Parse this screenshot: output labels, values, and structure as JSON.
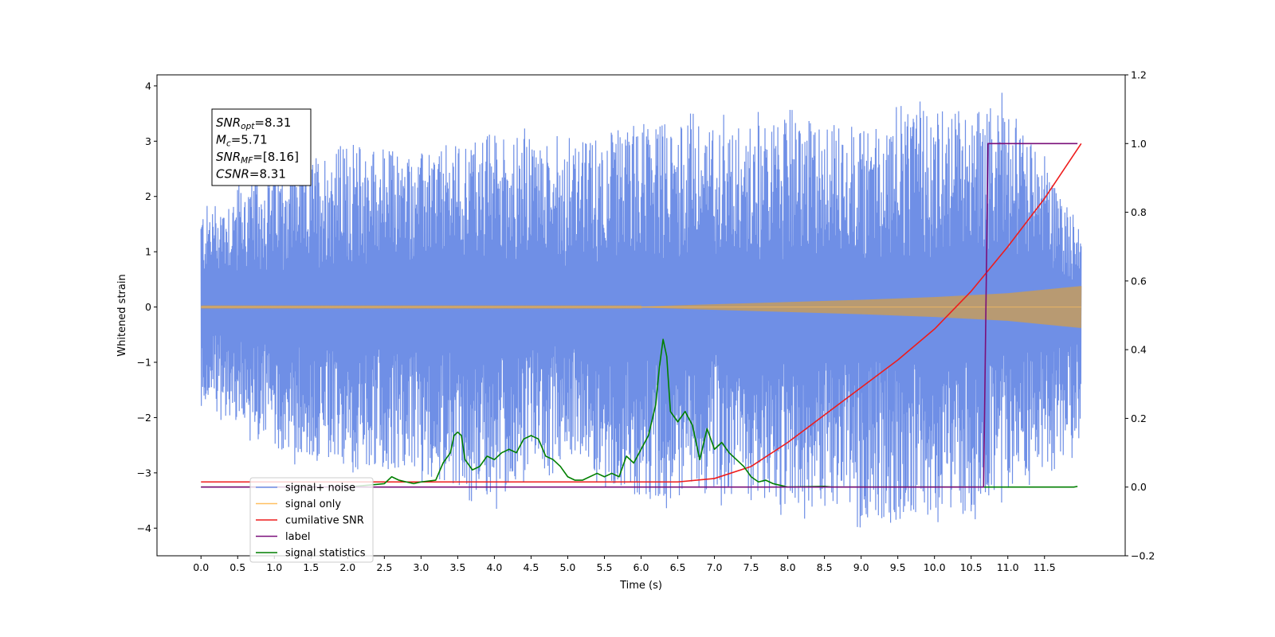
{
  "chart_data": {
    "type": "line",
    "xlabel": "Time (s)",
    "ylabel": "Whitened strain",
    "xlim": [
      -0.6,
      12.6
    ],
    "ylim": [
      -4.5,
      4.2
    ],
    "y2lim": [
      -0.2,
      1.2
    ],
    "x_ticks": [
      0.0,
      0.5,
      1.0,
      1.5,
      2.0,
      2.5,
      3.0,
      3.5,
      4.0,
      4.5,
      5.0,
      5.5,
      6.0,
      6.5,
      7.0,
      7.5,
      8.0,
      8.5,
      9.0,
      9.5,
      10.0,
      10.5,
      11.0,
      11.5
    ],
    "x_tick_labels": [
      "0.0",
      "0.5",
      "1.0",
      "1.5",
      "2.0",
      "2.5",
      "3.0",
      "3.5",
      "4.0",
      "4.5",
      "5.0",
      "5.5",
      "6.0",
      "6.5",
      "7.0",
      "7.5",
      "8.0",
      "8.5",
      "9.0",
      "9.5",
      "10.0",
      "10.5",
      "11.0",
      "11.5"
    ],
    "y_ticks": [
      -4,
      -3,
      -2,
      -1,
      0,
      1,
      2,
      3,
      4
    ],
    "y_tick_labels": [
      "−4",
      "−3",
      "−2",
      "−1",
      "0",
      "1",
      "2",
      "3",
      "4"
    ],
    "y2_ticks": [
      -0.2,
      0.0,
      0.2,
      0.4,
      0.6,
      0.8,
      1.0,
      1.2
    ],
    "y2_tick_labels": [
      "−0.2",
      "0.0",
      "0.2",
      "0.4",
      "0.6",
      "0.8",
      "1.0",
      "1.2"
    ],
    "grid": false,
    "legend_position": "lower-left",
    "stats_box": [
      {
        "base": "SNR",
        "sub": "opt",
        "value": "=8.31"
      },
      {
        "base": "M",
        "sub": "c",
        "value": "=5.71"
      },
      {
        "base": "SNR",
        "sub": "MF",
        "value": "=[8.16]"
      },
      {
        "base": "CSNR",
        "sub": "",
        "value": "=8.31"
      }
    ],
    "series": [
      {
        "name": "signal+ noise",
        "axis": "left",
        "color": "#6f8fe6",
        "envelope_x": [
          0.0,
          1.0,
          2.0,
          3.0,
          4.0,
          5.0,
          6.0,
          7.0,
          8.0,
          9.0,
          10.0,
          11.0,
          12.0
        ],
        "envelope_upper": [
          1.8,
          2.5,
          3.0,
          2.8,
          3.2,
          2.9,
          3.4,
          3.3,
          3.4,
          3.3,
          3.6,
          3.7,
          1.5
        ],
        "envelope_lower": [
          -1.7,
          -2.6,
          -3.0,
          -3.0,
          -3.5,
          -2.7,
          -3.5,
          -3.4,
          -3.6,
          -3.8,
          -4.1,
          -3.3,
          -2.5
        ]
      },
      {
        "name": "signal only",
        "axis": "left",
        "color": "#ffbf60",
        "x": [
          0.0,
          6.0,
          7.0,
          8.0,
          9.0,
          10.0,
          11.0,
          12.0
        ],
        "amplitude": [
          0.01,
          0.01,
          0.05,
          0.09,
          0.13,
          0.18,
          0.25,
          0.38
        ]
      },
      {
        "name": "cumilative SNR",
        "axis": "right",
        "color": "#ee1c1c",
        "x": [
          0.0,
          6.5,
          7.0,
          7.5,
          8.0,
          8.5,
          9.0,
          9.5,
          10.0,
          10.5,
          11.0,
          11.5,
          12.0
        ],
        "y": [
          0.015,
          0.015,
          0.025,
          0.06,
          0.13,
          0.21,
          0.29,
          0.37,
          0.46,
          0.57,
          0.7,
          0.84,
          1.0
        ]
      },
      {
        "name": "label",
        "axis": "right",
        "color": "#7a0f7a",
        "x": [
          0.0,
          10.67,
          10.73,
          11.95
        ],
        "y": [
          0.0,
          0.0,
          1.0,
          1.0
        ]
      },
      {
        "name": "signal statistics",
        "axis": "right",
        "color": "#007f00",
        "x": [
          0.0,
          2.0,
          2.5,
          2.6,
          2.7,
          2.8,
          2.9,
          3.0,
          3.2,
          3.3,
          3.4,
          3.45,
          3.5,
          3.55,
          3.6,
          3.7,
          3.8,
          3.9,
          4.0,
          4.1,
          4.2,
          4.3,
          4.4,
          4.5,
          4.6,
          4.7,
          4.8,
          4.9,
          5.0,
          5.1,
          5.2,
          5.4,
          5.5,
          5.6,
          5.7,
          5.8,
          5.9,
          6.0,
          6.1,
          6.2,
          6.25,
          6.3,
          6.35,
          6.4,
          6.5,
          6.6,
          6.7,
          6.8,
          6.9,
          7.0,
          7.1,
          7.2,
          7.3,
          7.4,
          7.5,
          7.6,
          7.7,
          7.8,
          7.9,
          8.0,
          8.5,
          8.6,
          9.0,
          11.9,
          11.95
        ],
        "y": [
          0.0,
          0.0,
          0.01,
          0.03,
          0.02,
          0.015,
          0.01,
          0.015,
          0.02,
          0.07,
          0.1,
          0.15,
          0.16,
          0.15,
          0.08,
          0.05,
          0.06,
          0.09,
          0.08,
          0.1,
          0.11,
          0.1,
          0.14,
          0.15,
          0.14,
          0.09,
          0.08,
          0.06,
          0.03,
          0.02,
          0.02,
          0.04,
          0.03,
          0.04,
          0.03,
          0.09,
          0.07,
          0.11,
          0.15,
          0.24,
          0.35,
          0.43,
          0.38,
          0.22,
          0.19,
          0.22,
          0.18,
          0.08,
          0.17,
          0.11,
          0.13,
          0.1,
          0.08,
          0.06,
          0.03,
          0.015,
          0.02,
          0.01,
          0.005,
          0.0,
          0.002,
          0.0,
          0.0,
          0.0,
          0.002
        ]
      }
    ]
  }
}
